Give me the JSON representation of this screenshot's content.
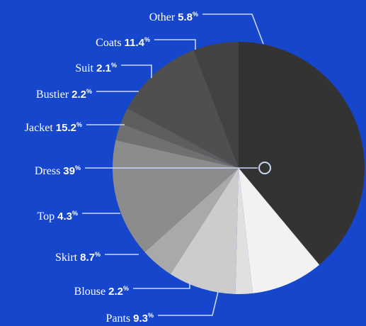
{
  "colors": {
    "background": "#1546cc",
    "leader": "#c9d6f5",
    "slices": {
      "Dress": "#333333",
      "Pants": "#f2f2f2",
      "Blouse": "#e0e0e0",
      "Skirt": "#cccccc",
      "Top": "#a9a9a9",
      "Jacket": "#8c8c8c",
      "Bustier": "#707070",
      "Suit": "#5e5e5e",
      "Coats": "#4f4f4f",
      "Other": "#424242"
    }
  },
  "chart_data": {
    "type": "pie",
    "unit": "%",
    "slices": [
      {
        "label": "Dress",
        "value": 39
      },
      {
        "label": "Pants",
        "value": 9.3
      },
      {
        "label": "Blouse",
        "value": 2.2
      },
      {
        "label": "Skirt",
        "value": 8.7
      },
      {
        "label": "Top",
        "value": 4.3
      },
      {
        "label": "Jacket",
        "value": 15.2
      },
      {
        "label": "Bustier",
        "value": 2.2
      },
      {
        "label": "Suit",
        "value": 2.1
      },
      {
        "label": "Coats",
        "value": 11.4
      },
      {
        "label": "Other",
        "value": 5.8
      }
    ]
  }
}
